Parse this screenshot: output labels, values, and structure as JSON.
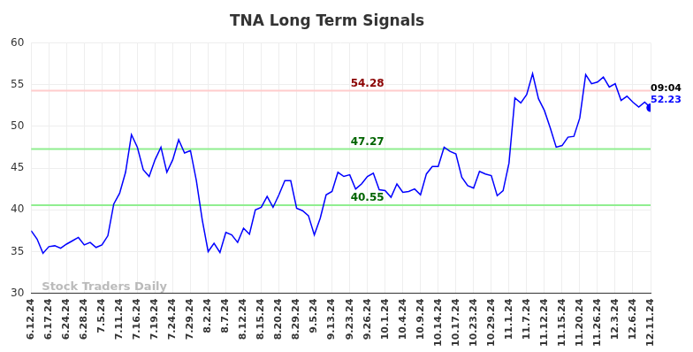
{
  "chart_data": {
    "type": "line",
    "title": "TNA Long Term Signals",
    "categories": [
      "6.12.24",
      null,
      null,
      "6.17.24",
      null,
      null,
      "6.24.24",
      null,
      null,
      "6.28.24",
      null,
      null,
      "7.5.24",
      null,
      null,
      "7.11.24",
      null,
      null,
      "7.16.24",
      null,
      null,
      "7.19.24",
      null,
      null,
      "7.24.24",
      null,
      null,
      "7.29.24",
      null,
      null,
      "8.2.24",
      null,
      null,
      "8.7.24",
      null,
      null,
      "8.12.24",
      null,
      null,
      "8.15.24",
      null,
      null,
      "8.20.24",
      null,
      null,
      "8.29.24",
      null,
      null,
      "9.5.24",
      null,
      null,
      "9.13.24",
      null,
      null,
      "9.23.24",
      null,
      null,
      "9.26.24",
      null,
      null,
      "10.1.24",
      null,
      null,
      "10.4.24",
      null,
      null,
      "10.9.24",
      null,
      null,
      "10.14.24",
      null,
      null,
      "10.17.24",
      null,
      null,
      "10.23.24",
      null,
      null,
      "10.29.24",
      null,
      null,
      "11.1.24",
      null,
      null,
      "11.7.24",
      null,
      null,
      "11.12.24",
      null,
      null,
      "11.15.24",
      null,
      null,
      "11.20.24",
      null,
      null,
      "11.26.24",
      null,
      null,
      "12.3.24",
      null,
      null,
      "12.6.24",
      null,
      null,
      "12.11.24"
    ],
    "values": [
      37.5,
      36.5,
      34.8,
      35.6,
      35.7,
      35.4,
      35.9,
      36.3,
      36.7,
      35.8,
      36.1,
      35.5,
      35.8,
      36.9,
      40.7,
      42.0,
      44.5,
      49.0,
      47.5,
      44.8,
      44.0,
      46.0,
      47.5,
      44.5,
      46.0,
      48.4,
      46.8,
      47.1,
      43.5,
      38.8,
      35.0,
      36.0,
      34.9,
      37.3,
      37.0,
      36.1,
      37.8,
      37.1,
      40.0,
      40.3,
      41.6,
      40.3,
      41.8,
      43.5,
      43.5,
      40.2,
      39.9,
      39.3,
      37.0,
      39.0,
      41.8,
      42.2,
      44.5,
      44.0,
      44.2,
      42.5,
      43.1,
      44.0,
      44.4,
      42.4,
      42.3,
      41.5,
      43.1,
      42.1,
      42.2,
      42.5,
      41.8,
      44.3,
      45.2,
      45.2,
      47.5,
      47.0,
      46.7,
      43.9,
      42.9,
      42.6,
      44.6,
      44.3,
      44.1,
      41.7,
      42.3,
      45.6,
      53.4,
      52.8,
      53.8,
      56.3,
      53.3,
      51.9,
      49.8,
      47.5,
      47.7,
      48.7,
      48.8,
      51.0,
      56.2,
      55.1,
      55.3,
      55.9,
      54.7,
      55.1,
      53.1,
      53.6,
      52.9,
      52.3,
      52.9,
      52.23
    ],
    "color": "#0000ff",
    "levels": [
      {
        "value": 54.28,
        "color": "#ffcccc",
        "label_color": "#8b0000"
      },
      {
        "value": 47.27,
        "color": "#90ee90",
        "label_color": "#006400"
      },
      {
        "value": 40.55,
        "color": "#90ee90",
        "label_color": "#006400"
      }
    ],
    "time_label": "09:04",
    "watermark": "Stock Traders Daily",
    "ylim": [
      30,
      60
    ],
    "yticks": [
      30,
      35,
      40,
      45,
      50,
      55,
      60
    ],
    "grid": true
  }
}
